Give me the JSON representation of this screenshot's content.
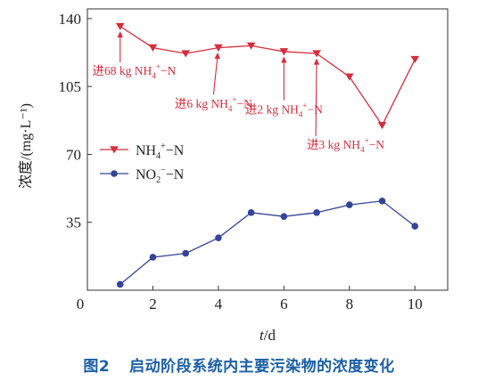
{
  "caption": {
    "number": "图2",
    "text": "启动阶段系统内主要污染物的浓度变化"
  },
  "chart_data": {
    "type": "line",
    "xlabel_var": "t",
    "xlabel_unit": "/d",
    "ylabel": "浓度/(mg·L⁻¹)",
    "xlim": [
      0,
      11
    ],
    "ylim": [
      0,
      145
    ],
    "xticks": [
      2,
      4,
      6,
      8,
      10
    ],
    "yticks": [
      35,
      70,
      105,
      140
    ],
    "origin_label": "0",
    "grid": false,
    "legend_position": "middle-left",
    "colors": {
      "nh4": "#d62d3c",
      "no2": "#34449a",
      "axis": "#333333",
      "annot": "#d62d3c"
    },
    "series": [
      {
        "key": "nh4",
        "name_base": "NH",
        "name_sub": "4",
        "name_sup": "+",
        "name_tail": "−N",
        "marker": "triangle-down",
        "x": [
          1,
          2,
          3,
          4,
          5,
          6,
          7,
          8,
          9,
          10
        ],
        "y": [
          136,
          125,
          122,
          125,
          126,
          123,
          122,
          110,
          85,
          119
        ]
      },
      {
        "key": "no2",
        "name_base": "NO",
        "name_sub": "2",
        "name_sup": "−",
        "name_tail": "−N",
        "marker": "circle",
        "x": [
          1,
          2,
          3,
          4,
          5,
          6,
          7,
          8,
          9,
          10
        ],
        "y": [
          3,
          17,
          19,
          27,
          40,
          38,
          40,
          44,
          46,
          33
        ]
      }
    ],
    "annotations": [
      {
        "prefix": "进68 kg NH",
        "sub": "4",
        "sup": "+",
        "suffix": "−N",
        "target_x": 1,
        "target_y": 136,
        "anchor": "start",
        "text_x": 0.15,
        "text_y": 111
      },
      {
        "prefix": "进6 kg NH",
        "sub": "4",
        "sup": "+",
        "suffix": "−N",
        "target_x": 4,
        "target_y": 125,
        "anchor": "middle",
        "text_x": 3.85,
        "text_y": 94
      },
      {
        "prefix": "进2 kg NH",
        "sub": "4",
        "sup": "+",
        "suffix": "−N",
        "target_x": 6,
        "target_y": 123,
        "anchor": "middle",
        "text_x": 6.0,
        "text_y": 91
      },
      {
        "prefix": "进3 kg NH",
        "sub": "4",
        "sup": "+",
        "suffix": "−N",
        "target_x": 7,
        "target_y": 122,
        "anchor": "start",
        "text_x": 6.7,
        "text_y": 73
      }
    ]
  }
}
